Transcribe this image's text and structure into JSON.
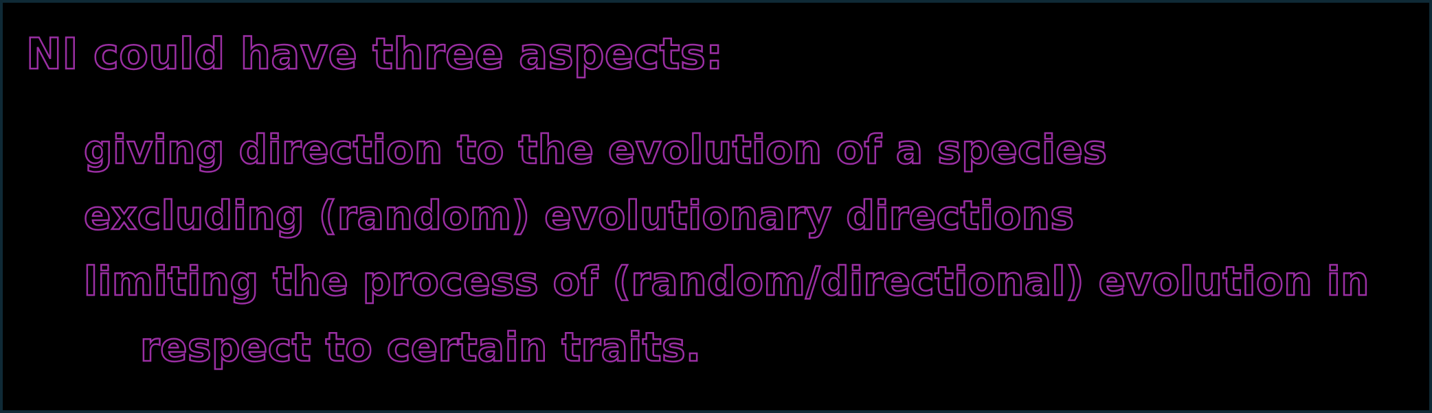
{
  "heading": "NI could have three aspects:",
  "aspects": [
    "giving direction to the evolution of a species",
    "excluding (random) evolutionary directions",
    "limiting the process of (random/directional) evolution in",
    "respect to certain traits."
  ],
  "colors": {
    "background": "#000000",
    "text_outline": "#9b2fa3",
    "border": "#0f2a36"
  }
}
